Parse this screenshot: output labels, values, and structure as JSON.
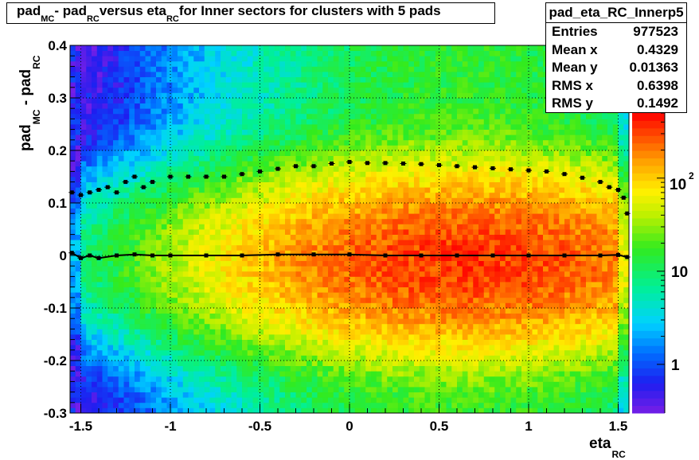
{
  "title": {
    "parts": [
      {
        "text": "pad",
        "sub": "MC"
      },
      {
        "text": " - pad",
        "sub": "RC"
      },
      {
        "text": " versus eta",
        "sub": "RC"
      },
      {
        "text": " for Inner sectors for clusters with 5 pads",
        "sub": ""
      }
    ]
  },
  "stats": {
    "name": "pad_eta_RC_Innerp5",
    "rows": [
      {
        "key": "Entries",
        "value": "977523"
      },
      {
        "key": "Mean x",
        "value": "0.4329"
      },
      {
        "key": "Mean y",
        "value": "0.01363"
      },
      {
        "key": "RMS x",
        "value": "0.6398"
      },
      {
        "key": "RMS y",
        "value": "0.1492"
      }
    ]
  },
  "chart_data": {
    "type": "heatmap",
    "title": "pad_MC - pad_RC versus eta_RC for Inner sectors for clusters with 5 pads",
    "xlabel": "eta_RC",
    "ylabel": "pad_MC - pad_RC",
    "xlabel_main": "eta",
    "xlabel_sub": "RC",
    "ylabel_parts": [
      {
        "text": "pad",
        "sub": "MC"
      },
      {
        "text": " - pad",
        "sub": "RC"
      }
    ],
    "xlim": [
      -1.56,
      1.56
    ],
    "ylim": [
      -0.3,
      0.4
    ],
    "x_ticks": [
      -1.5,
      -1,
      -0.5,
      0,
      0.5,
      1,
      1.5
    ],
    "x_tick_labels": [
      "-1.5",
      "-1",
      "-0.5",
      "0",
      "0.5",
      "1",
      "1.5"
    ],
    "y_ticks": [
      -0.3,
      -0.2,
      -0.1,
      0,
      0.1,
      0.2,
      0.3,
      0.4
    ],
    "y_tick_labels": [
      "-0.3",
      "-0.2",
      "-0.1",
      "0",
      "0.1",
      "0.2",
      "0.3",
      "0.4"
    ],
    "z_scale": "log",
    "z_range": [
      0.3,
      500
    ],
    "z_ticks": [
      1,
      10,
      100
    ],
    "z_tick_labels": [
      "1",
      "10",
      "10^2"
    ],
    "bins": {
      "nx": 104,
      "ny": 70
    },
    "grid": true,
    "density_model": {
      "description": "approximate occupancy read from colours",
      "peak_value": 400,
      "center_x": 0.65,
      "center_y": -0.01,
      "sigma_x": 0.78,
      "sigma_y_core": 0.09,
      "tail_floor": 0.04
    },
    "series": [
      {
        "name": "RMS profile",
        "x": [
          -1.55,
          -1.5,
          -1.45,
          -1.4,
          -1.35,
          -1.3,
          -1.25,
          -1.2,
          -1.15,
          -1.1,
          -1.0,
          -0.9,
          -0.8,
          -0.7,
          -0.6,
          -0.5,
          -0.4,
          -0.3,
          -0.2,
          -0.1,
          0.0,
          0.1,
          0.2,
          0.3,
          0.4,
          0.5,
          0.6,
          0.7,
          0.8,
          0.9,
          1.0,
          1.1,
          1.2,
          1.3,
          1.4,
          1.45,
          1.5,
          1.53,
          1.55
        ],
        "y": [
          0.12,
          0.115,
          0.12,
          0.125,
          0.13,
          0.12,
          0.14,
          0.15,
          0.13,
          0.14,
          0.15,
          0.15,
          0.15,
          0.15,
          0.155,
          0.16,
          0.165,
          0.17,
          0.17,
          0.175,
          0.178,
          0.176,
          0.176,
          0.175,
          0.174,
          0.172,
          0.17,
          0.168,
          0.166,
          0.164,
          0.162,
          0.16,
          0.155,
          0.148,
          0.14,
          0.13,
          0.125,
          0.11,
          0.08
        ]
      },
      {
        "name": "Mean profile",
        "x": [
          -1.55,
          -1.5,
          -1.45,
          -1.4,
          -1.3,
          -1.2,
          -1.1,
          -1.0,
          -0.8,
          -0.6,
          -0.4,
          -0.2,
          0.0,
          0.2,
          0.4,
          0.6,
          0.8,
          1.0,
          1.2,
          1.4,
          1.5,
          1.55
        ],
        "y": [
          0.005,
          -0.005,
          0.0,
          -0.005,
          0.0,
          0.002,
          0.0,
          0.0,
          0.0,
          0.0,
          0.002,
          0.002,
          0.002,
          0.0,
          0.0,
          0.0,
          0.0,
          0.0,
          0.0,
          0.0,
          0.001,
          -0.003
        ]
      }
    ]
  }
}
